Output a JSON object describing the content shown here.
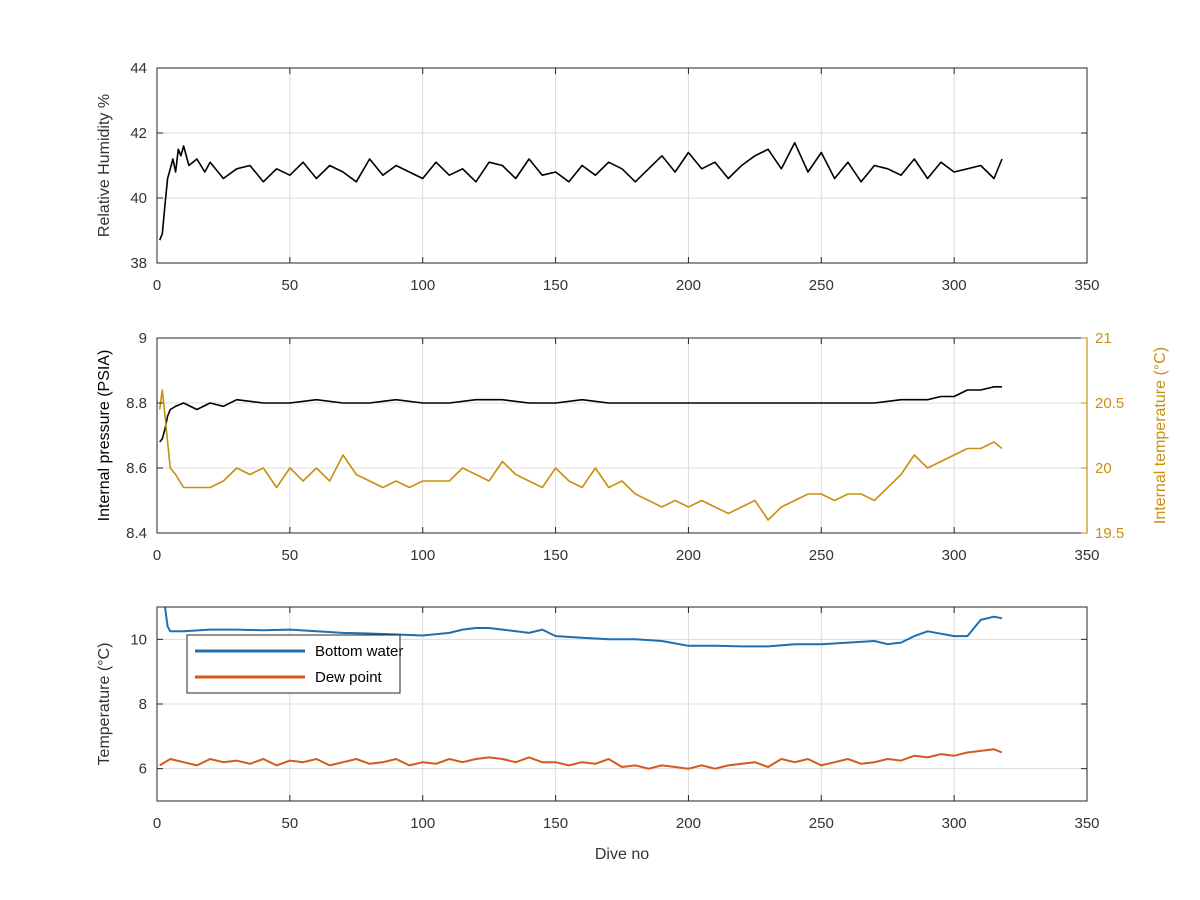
{
  "chart_data": [
    {
      "type": "line",
      "title": "",
      "xlabel": "",
      "ylabel": "Relative Humidity %",
      "xlim": [
        0,
        350
      ],
      "ylim": [
        38,
        44
      ],
      "xticks": [
        0,
        50,
        100,
        150,
        200,
        250,
        300,
        350
      ],
      "yticks": [
        38,
        40,
        42,
        44
      ],
      "grid": true,
      "series": [
        {
          "name": "",
          "color": "#000000",
          "x": [
            1,
            2,
            3,
            4,
            5,
            6,
            7,
            8,
            9,
            10,
            12,
            15,
            18,
            20,
            25,
            30,
            35,
            40,
            45,
            50,
            55,
            60,
            65,
            70,
            75,
            80,
            85,
            90,
            95,
            100,
            105,
            110,
            115,
            120,
            125,
            130,
            135,
            140,
            145,
            150,
            155,
            160,
            165,
            170,
            175,
            180,
            185,
            190,
            195,
            200,
            205,
            210,
            215,
            220,
            225,
            230,
            235,
            240,
            245,
            250,
            255,
            260,
            265,
            270,
            275,
            280,
            285,
            290,
            295,
            300,
            305,
            310,
            315,
            318
          ],
          "y": [
            38.7,
            38.9,
            39.8,
            40.6,
            40.9,
            41.2,
            40.8,
            41.5,
            41.3,
            41.6,
            41.0,
            41.2,
            40.8,
            41.1,
            40.6,
            40.9,
            41.0,
            40.5,
            40.9,
            40.7,
            41.1,
            40.6,
            41.0,
            40.8,
            40.5,
            41.2,
            40.7,
            41.0,
            40.8,
            40.6,
            41.1,
            40.7,
            40.9,
            40.5,
            41.1,
            41.0,
            40.6,
            41.2,
            40.7,
            40.8,
            40.5,
            41.0,
            40.7,
            41.1,
            40.9,
            40.5,
            40.9,
            41.3,
            40.8,
            41.4,
            40.9,
            41.1,
            40.6,
            41.0,
            41.3,
            41.5,
            40.9,
            41.7,
            40.8,
            41.4,
            40.6,
            41.1,
            40.5,
            41.0,
            40.9,
            40.7,
            41.2,
            40.6,
            41.1,
            40.8,
            40.9,
            41.0,
            40.6,
            41.2
          ]
        }
      ]
    },
    {
      "type": "line",
      "title": "",
      "xlabel": "",
      "ylabel": "Internal pressure (PSIA)",
      "ylabel_right": "Internal temperature (°C)",
      "xlim": [
        0,
        350
      ],
      "ylim": [
        8.4,
        9
      ],
      "ylim_right": [
        19.5,
        21
      ],
      "xticks": [
        0,
        50,
        100,
        150,
        200,
        250,
        300,
        350
      ],
      "yticks": [
        8.4,
        8.6,
        8.8,
        9
      ],
      "yticks_right": [
        19.5,
        20,
        20.5,
        21
      ],
      "grid": true,
      "series": [
        {
          "name": "",
          "axis": "left",
          "color": "#000000",
          "x": [
            1,
            2,
            3,
            4,
            5,
            7,
            10,
            15,
            20,
            25,
            30,
            40,
            50,
            60,
            70,
            80,
            90,
            100,
            110,
            120,
            130,
            140,
            150,
            160,
            170,
            180,
            190,
            200,
            210,
            220,
            230,
            240,
            250,
            260,
            270,
            280,
            290,
            295,
            300,
            305,
            310,
            315,
            318
          ],
          "y": [
            8.68,
            8.69,
            8.72,
            8.76,
            8.78,
            8.79,
            8.8,
            8.78,
            8.8,
            8.79,
            8.81,
            8.8,
            8.8,
            8.81,
            8.8,
            8.8,
            8.81,
            8.8,
            8.8,
            8.81,
            8.81,
            8.8,
            8.8,
            8.81,
            8.8,
            8.8,
            8.8,
            8.8,
            8.8,
            8.8,
            8.8,
            8.8,
            8.8,
            8.8,
            8.8,
            8.81,
            8.81,
            8.82,
            8.82,
            8.84,
            8.84,
            8.85,
            8.85
          ]
        },
        {
          "name": "",
          "axis": "right",
          "color": "#c8900f",
          "x": [
            1,
            2,
            3,
            4,
            5,
            7,
            10,
            13,
            20,
            25,
            30,
            35,
            40,
            45,
            50,
            55,
            60,
            65,
            70,
            75,
            80,
            85,
            90,
            95,
            100,
            105,
            110,
            115,
            120,
            125,
            130,
            135,
            140,
            145,
            150,
            155,
            160,
            165,
            170,
            175,
            180,
            185,
            190,
            195,
            200,
            205,
            210,
            215,
            220,
            225,
            230,
            235,
            240,
            245,
            250,
            255,
            260,
            265,
            270,
            275,
            280,
            285,
            290,
            295,
            300,
            305,
            310,
            315,
            318
          ],
          "y": [
            20.45,
            20.6,
            20.4,
            20.2,
            20.0,
            19.95,
            19.85,
            19.85,
            19.85,
            19.9,
            20.0,
            19.95,
            20.0,
            19.85,
            20.0,
            19.9,
            20.0,
            19.9,
            20.1,
            19.95,
            19.9,
            19.85,
            19.9,
            19.85,
            19.9,
            19.9,
            19.9,
            20.0,
            19.95,
            19.9,
            20.05,
            19.95,
            19.9,
            19.85,
            20.0,
            19.9,
            19.85,
            20.0,
            19.85,
            19.9,
            19.8,
            19.75,
            19.7,
            19.75,
            19.7,
            19.75,
            19.7,
            19.65,
            19.7,
            19.75,
            19.6,
            19.7,
            19.75,
            19.8,
            19.8,
            19.75,
            19.8,
            19.8,
            19.75,
            19.85,
            19.95,
            20.1,
            20.0,
            20.05,
            20.1,
            20.15,
            20.15,
            20.2,
            20.15
          ]
        }
      ]
    },
    {
      "type": "line",
      "title": "",
      "xlabel": "Dive no",
      "ylabel": "Temperature (°C)",
      "xlim": [
        0,
        350
      ],
      "ylim": [
        5,
        11
      ],
      "xticks": [
        0,
        50,
        100,
        150,
        200,
        250,
        300,
        350
      ],
      "yticks": [
        6,
        8,
        10
      ],
      "grid": true,
      "legend": "top-left",
      "series": [
        {
          "name": "Bottom water",
          "color": "#1f6fb0",
          "x": [
            3,
            4,
            5,
            10,
            20,
            30,
            40,
            50,
            60,
            70,
            80,
            90,
            100,
            110,
            115,
            120,
            125,
            130,
            140,
            145,
            150,
            160,
            170,
            180,
            190,
            200,
            210,
            220,
            230,
            240,
            250,
            260,
            270,
            275,
            280,
            285,
            290,
            300,
            305,
            310,
            315,
            318
          ],
          "y": [
            11.0,
            10.4,
            10.25,
            10.25,
            10.3,
            10.3,
            10.28,
            10.3,
            10.25,
            10.2,
            10.18,
            10.15,
            10.12,
            10.2,
            10.3,
            10.35,
            10.35,
            10.3,
            10.2,
            10.3,
            10.1,
            10.05,
            10.0,
            10.0,
            9.95,
            9.8,
            9.8,
            9.78,
            9.78,
            9.85,
            9.85,
            9.9,
            9.95,
            9.85,
            9.9,
            10.1,
            10.25,
            10.1,
            10.1,
            10.6,
            10.7,
            10.65
          ]
        },
        {
          "name": "Dew point",
          "color": "#d45a1f",
          "x": [
            1,
            5,
            10,
            15,
            20,
            25,
            30,
            35,
            40,
            45,
            50,
            55,
            60,
            65,
            70,
            75,
            80,
            85,
            90,
            95,
            100,
            105,
            110,
            115,
            120,
            125,
            130,
            135,
            140,
            145,
            150,
            155,
            160,
            165,
            170,
            175,
            180,
            185,
            190,
            195,
            200,
            205,
            210,
            215,
            220,
            225,
            230,
            235,
            240,
            245,
            250,
            255,
            260,
            265,
            270,
            275,
            280,
            285,
            290,
            295,
            300,
            305,
            310,
            315,
            318
          ],
          "y": [
            6.1,
            6.3,
            6.2,
            6.1,
            6.3,
            6.2,
            6.25,
            6.15,
            6.3,
            6.1,
            6.25,
            6.2,
            6.3,
            6.1,
            6.2,
            6.3,
            6.15,
            6.2,
            6.3,
            6.1,
            6.2,
            6.15,
            6.3,
            6.2,
            6.3,
            6.35,
            6.3,
            6.2,
            6.35,
            6.2,
            6.2,
            6.1,
            6.2,
            6.15,
            6.3,
            6.05,
            6.1,
            6.0,
            6.1,
            6.05,
            6.0,
            6.1,
            6.0,
            6.1,
            6.15,
            6.2,
            6.05,
            6.3,
            6.2,
            6.3,
            6.1,
            6.2,
            6.3,
            6.15,
            6.2,
            6.3,
            6.25,
            6.4,
            6.35,
            6.45,
            6.4,
            6.5,
            6.55,
            6.6,
            6.5
          ]
        }
      ]
    }
  ]
}
